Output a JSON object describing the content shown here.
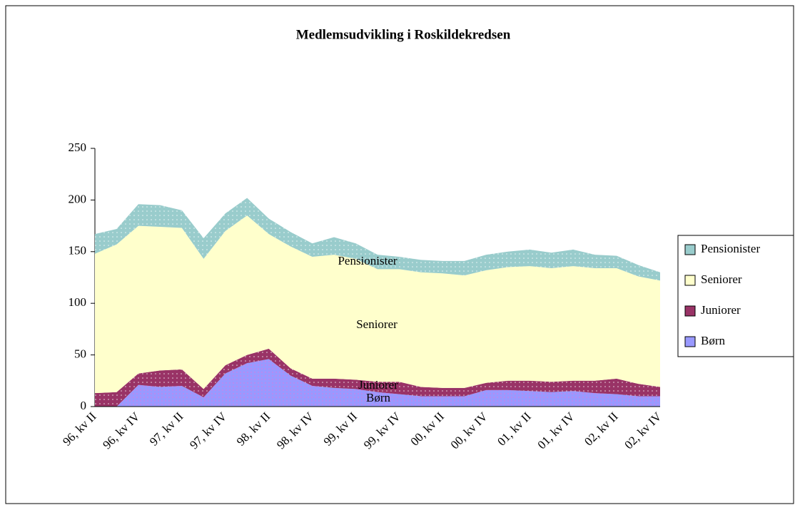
{
  "chart_data": {
    "type": "stacked_area",
    "title": "Medlemsudvikling i Roskildekredsen",
    "categories": [
      "96, kv II",
      null,
      "96, kv IV",
      null,
      "97, kv II",
      null,
      "97, kv IV",
      null,
      "98, kv II",
      null,
      "98, kv IV",
      null,
      "99, kv II",
      null,
      "99, kv IV",
      null,
      "00, kv II",
      null,
      "00, kv IV",
      null,
      "01, kv II",
      null,
      "01, kv IV",
      null,
      "02, kv II",
      null,
      "02, kv IV"
    ],
    "series": [
      {
        "name": "Børn",
        "color": "#9999ff",
        "values": [
          0,
          0,
          21,
          19,
          20,
          9,
          32,
          42,
          46,
          30,
          20,
          18,
          17,
          14,
          12,
          10,
          10,
          10,
          16,
          16,
          15,
          14,
          15,
          13,
          12,
          10,
          10
        ]
      },
      {
        "name": "Juniorer",
        "color": "#993366",
        "values": [
          13,
          14,
          11,
          16,
          16,
          8,
          8,
          8,
          10,
          7,
          7,
          9,
          9,
          10,
          12,
          9,
          8,
          8,
          7,
          9,
          10,
          10,
          10,
          12,
          15,
          12,
          9
        ]
      },
      {
        "name": "Seniorer",
        "color": "#ffffcc",
        "values": [
          135,
          143,
          143,
          139,
          137,
          126,
          130,
          135,
          111,
          118,
          118,
          120,
          117,
          109,
          109,
          111,
          111,
          109,
          109,
          110,
          111,
          110,
          111,
          109,
          107,
          104,
          103
        ]
      },
      {
        "name": "Pensionister",
        "color": "#99cccc",
        "values": [
          19,
          15,
          21,
          21,
          17,
          20,
          17,
          17,
          15,
          14,
          13,
          17,
          15,
          14,
          12,
          12,
          12,
          14,
          15,
          15,
          16,
          15,
          16,
          13,
          12,
          11,
          8
        ]
      }
    ],
    "ylim": [
      0,
      250
    ],
    "yticks": [
      0,
      50,
      100,
      150,
      200,
      250
    ],
    "legend": "right"
  }
}
